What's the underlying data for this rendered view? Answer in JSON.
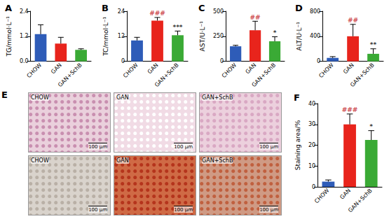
{
  "chart_data": [
    {
      "type": "bar",
      "title": "A",
      "y_label": "TG/mmol·L⁻¹",
      "categories": [
        "CHOW",
        "GAN",
        "GAN+SchB"
      ],
      "values": [
        1.3,
        0.85,
        0.55
      ],
      "errors": [
        0.45,
        0.3,
        0.05
      ],
      "annotations": [
        null,
        null,
        null
      ],
      "colors": [
        "#2e5cb8",
        "#e8241c",
        "#3aaa35"
      ],
      "ylim": [
        0,
        2.4
      ],
      "yticks": [
        {
          "value": 0,
          "label": "0.0"
        },
        1.2,
        2.4
      ],
      "grid": false
    },
    {
      "type": "bar",
      "title": "B",
      "y_label": "TC/mmol·L⁻¹",
      "categories": [
        "CHOW",
        "GAN",
        "GAN+SchB"
      ],
      "values": [
        10,
        19.5,
        12.5
      ],
      "errors": [
        1.5,
        1.5,
        2
      ],
      "annotations": [
        null,
        "###",
        "***"
      ],
      "colors": [
        "#2e5cb8",
        "#e8241c",
        "#3aaa35"
      ],
      "ylim": [
        0,
        24
      ],
      "yticks": [
        0,
        12,
        24
      ],
      "grid": false
    },
    {
      "type": "bar",
      "title": "C",
      "y_label": "AST/U·L⁻¹",
      "categories": [
        "CHOW",
        "GAN",
        "GAN+SchB"
      ],
      "values": [
        150,
        310,
        200
      ],
      "errors": [
        10,
        90,
        45
      ],
      "annotations": [
        null,
        "##",
        "*"
      ],
      "colors": [
        "#2e5cb8",
        "#e8241c",
        "#3aaa35"
      ],
      "ylim": [
        0,
        500
      ],
      "yticks": [
        0,
        250,
        500
      ],
      "grid": false
    },
    {
      "type": "bar",
      "title": "D",
      "y_label": "ALT/U·L⁻¹",
      "categories": [
        "CHOW",
        "GAN",
        "GAN+SchB"
      ],
      "values": [
        55,
        400,
        120
      ],
      "errors": [
        20,
        190,
        80
      ],
      "annotations": [
        null,
        "##",
        "**"
      ],
      "colors": [
        "#2e5cb8",
        "#e8241c",
        "#3aaa35"
      ],
      "ylim": [
        0,
        800
      ],
      "yticks": [
        0,
        400,
        800
      ],
      "grid": false
    },
    {
      "type": "bar",
      "title": "F",
      "y_label": "Staining area/%",
      "categories": [
        "CHOW",
        "GAN",
        "GAN+SchB"
      ],
      "values": [
        2.5,
        30,
        22.5
      ],
      "errors": [
        0.8,
        5,
        4.5
      ],
      "annotations": [
        null,
        "###",
        "*"
      ],
      "colors": [
        "#2e5cb8",
        "#e8241c",
        "#3aaa35"
      ],
      "ylim": [
        0,
        40
      ],
      "yticks": [
        0,
        10,
        20,
        30,
        40
      ],
      "grid": false
    }
  ],
  "panel_E": {
    "label": "E",
    "rows": [
      [
        {
          "label": "CHOW",
          "scale_bar": "100 μm"
        },
        {
          "label": "GAN",
          "scale_bar": "100 μm"
        },
        {
          "label": "GAN+SchB",
          "scale_bar": "100 μm"
        }
      ],
      [
        {
          "label": "CHOW",
          "scale_bar": "100 μm"
        },
        {
          "label": "GAN",
          "scale_bar": "100 μm"
        },
        {
          "label": "GAN+SchB",
          "scale_bar": "100 μm"
        }
      ]
    ]
  }
}
